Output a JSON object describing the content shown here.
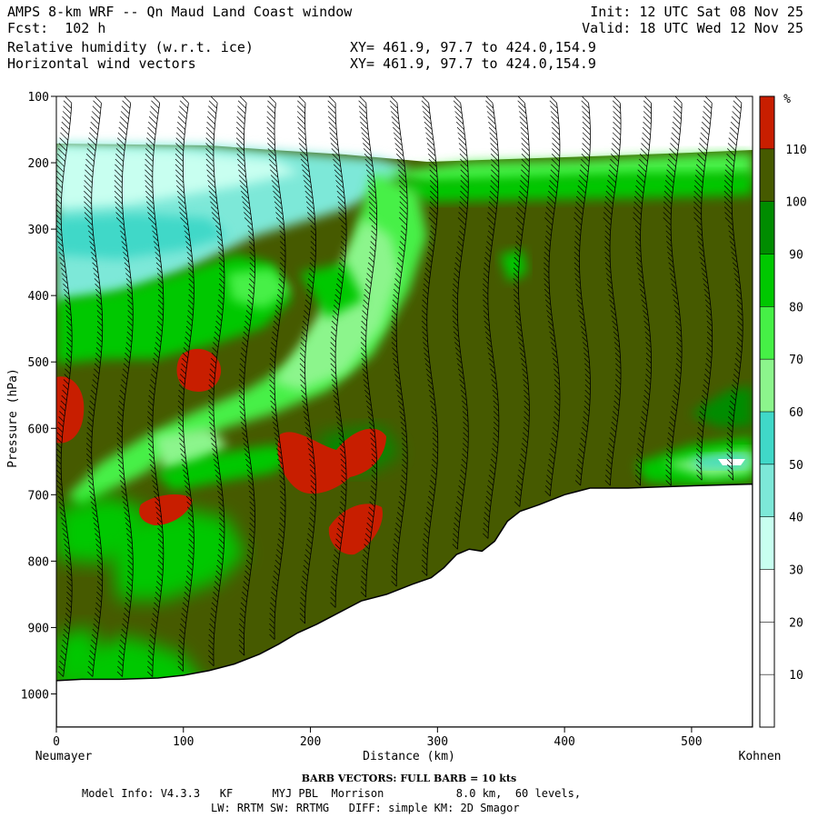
{
  "header": {
    "title": "AMPS 8-km WRF -- Qn Maud Land Coast window",
    "fcst": "Fcst:  102 h",
    "field1": "Relative humidity (w.r.t. ice)",
    "field2": "Horizontal wind vectors",
    "init": "Init: 12 UTC Sat 08 Nov 25",
    "valid": "Valid: 18 UTC Wed 12 Nov 25",
    "xy1": "XY= 461.9, 97.7 to 424.0,154.9",
    "xy2": "XY= 461.9, 97.7 to 424.0,154.9"
  },
  "footer": {
    "barb_note": "BARB VECTORS:  FULL BARB = 10 kts",
    "model_info_1": "Model Info: V4.3.3   KF      MYJ PBL  Morrison           8.0 km,  60 levels,",
    "model_info_2": "LW: RRTM SW: RRTMG   DIFF: simple KM: 2D Smagor"
  },
  "chart_data": {
    "type": "heatmap",
    "title": "Relative humidity (w.r.t. ice)",
    "xlabel": "Distance (km)",
    "ylabel": "Pressure (hPa)",
    "x_ticks": [
      0,
      100,
      200,
      300,
      400,
      500
    ],
    "y_ticks": [
      100,
      200,
      300,
      400,
      500,
      600,
      700,
      800,
      900,
      1000
    ],
    "xlim": [
      0,
      548
    ],
    "ylim": [
      1050,
      100
    ],
    "x_endpoints": {
      "left": "Neumayer",
      "right": "Kohnen"
    },
    "colorbar": {
      "unit": "%",
      "levels": [
        10,
        20,
        30,
        40,
        50,
        60,
        70,
        80,
        90,
        100,
        110
      ],
      "colors": [
        "#ffffff",
        "#ffffff",
        "#ffffff",
        "#c8fff0",
        "#7de8d8",
        "#40d8c8",
        "#8cf58c",
        "#46f046",
        "#00c800",
        "#008c00",
        "#465a00",
        "#c81e00"
      ]
    },
    "terrain_profile": {
      "x_km": [
        0,
        20,
        50,
        80,
        100,
        120,
        140,
        160,
        175,
        190,
        205,
        220,
        240,
        260,
        280,
        295,
        305,
        315,
        325,
        335,
        345,
        355,
        365,
        380,
        400,
        420,
        450,
        480,
        510,
        548
      ],
      "pressure_hpa": [
        980,
        978,
        978,
        976,
        972,
        965,
        955,
        940,
        925,
        908,
        895,
        880,
        860,
        850,
        835,
        825,
        810,
        790,
        782,
        785,
        770,
        740,
        725,
        715,
        700,
        690,
        690,
        688,
        686,
        684
      ]
    },
    "high_rh_cells": [
      {
        "x_km": 10,
        "p_hpa": 560
      },
      {
        "x_km": 115,
        "p_hpa": 515
      },
      {
        "x_km": 85,
        "p_hpa": 725
      },
      {
        "x_km": 215,
        "p_hpa": 640
      },
      {
        "x_km": 245,
        "p_hpa": 610
      },
      {
        "x_km": 235,
        "p_hpa": 775
      }
    ]
  }
}
